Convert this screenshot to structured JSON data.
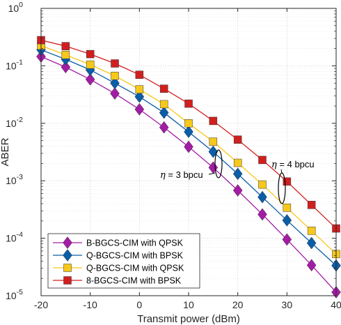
{
  "chart_data": {
    "type": "line",
    "title": "",
    "xlabel": "Transmit power (dBm)",
    "ylabel": "ABER",
    "xlim": [
      -20,
      40
    ],
    "ylim": [
      1e-05,
      1
    ],
    "y_scale": "log",
    "grid": true,
    "legend_position": "bottom-left",
    "x": [
      -20,
      -15,
      -10,
      -5,
      0,
      5,
      10,
      15,
      20,
      25,
      30,
      35,
      40
    ],
    "x_ticks": [
      "-20",
      "-10",
      "0",
      "10",
      "20",
      "30",
      "40"
    ],
    "y_ticks": [
      {
        "base": "10",
        "exp": "-5"
      },
      {
        "base": "10",
        "exp": "-4"
      },
      {
        "base": "10",
        "exp": "-3"
      },
      {
        "base": "10",
        "exp": "-2"
      },
      {
        "base": "10",
        "exp": "-1"
      },
      {
        "base": "10",
        "exp": "0"
      }
    ],
    "series": [
      {
        "name": "B-BGCS-CIM with QPSK",
        "color": "#a31ca6",
        "marker": "diamond",
        "values": [
          0.145,
          0.095,
          0.058,
          0.033,
          0.0175,
          0.0085,
          0.0039,
          0.0017,
          0.00068,
          0.00026,
          9.5e-05,
          3.4e-05,
          1.15e-05
        ]
      },
      {
        "name": "Q-BGCS-CIM with BPSK",
        "color": "#0a5ea8",
        "marker": "diamond",
        "values": [
          0.19,
          0.13,
          0.085,
          0.05,
          0.029,
          0.0153,
          0.0071,
          0.0032,
          0.00132,
          0.00052,
          0.000205,
          8.25e-05,
          3.35e-05
        ]
      },
      {
        "name": "Q-BGCS-CIM with QPSK",
        "color": "#f7c81a",
        "marker": "square",
        "values": [
          0.225,
          0.155,
          0.105,
          0.067,
          0.039,
          0.0215,
          0.01,
          0.0048,
          0.00205,
          0.00086,
          0.00034,
          0.000135,
          5.3e-05
        ]
      },
      {
        "name": "8-BGCS-CIM with BPSK",
        "color": "#d11f1f",
        "marker": "square",
        "values": [
          0.28,
          0.22,
          0.16,
          0.11,
          0.07,
          0.04,
          0.022,
          0.011,
          0.0052,
          0.0023,
          0.00097,
          0.00038,
          0.000148
        ]
      }
    ],
    "annotations": [
      {
        "symbol": "η",
        "text": " = 3 bpcu"
      },
      {
        "symbol": "η",
        "text": " = 4 bpcu"
      }
    ]
  }
}
